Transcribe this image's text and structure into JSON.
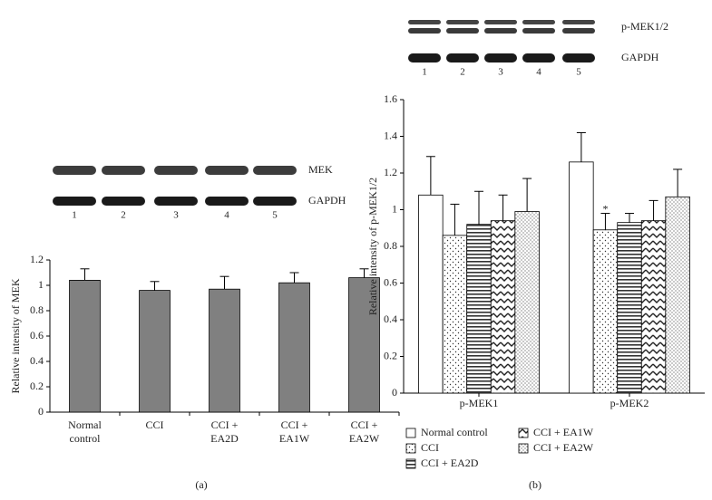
{
  "chart_data": [
    {
      "type": "bar",
      "panel_label": "(a)",
      "blot": {
        "rows": [
          "MEK",
          "GAPDH"
        ],
        "lanes": [
          "1",
          "2",
          "3",
          "4",
          "5"
        ]
      },
      "y_label": "Relative intensity of MEK",
      "categories": [
        "Normal control",
        "CCI",
        "CCI + EA2D",
        "CCI + EA1W",
        "CCI + EA2W"
      ],
      "values": [
        1.04,
        0.96,
        0.97,
        1.02,
        1.06
      ],
      "errors": [
        0.09,
        0.07,
        0.1,
        0.08,
        0.07
      ],
      "color": "#808080",
      "ylim": [
        0,
        1.2
      ],
      "yticks": [
        0,
        0.2,
        0.4,
        0.6,
        0.8,
        1,
        1.2
      ]
    },
    {
      "type": "grouped_bar",
      "panel_label": "(b)",
      "blot": {
        "rows": [
          "p-MEK1/2",
          "GAPDH"
        ],
        "lanes": [
          "1",
          "2",
          "3",
          "4",
          "5"
        ]
      },
      "y_label": "Relative intensity of p-MEK1/2",
      "categories": [
        "p-MEK1",
        "p-MEK2"
      ],
      "series": [
        {
          "name": "Normal control",
          "pattern": "none",
          "values": [
            1.08,
            1.26
          ],
          "errors": [
            0.21,
            0.16
          ]
        },
        {
          "name": "CCI",
          "pattern": "dots",
          "values": [
            0.86,
            0.89
          ],
          "errors": [
            0.17,
            0.09
          ]
        },
        {
          "name": "CCI + EA2D",
          "pattern": "hlines",
          "values": [
            0.92,
            0.93
          ],
          "errors": [
            0.18,
            0.05
          ]
        },
        {
          "name": "CCI + EA1W",
          "pattern": "zigzag",
          "values": [
            0.94,
            0.94
          ],
          "errors": [
            0.14,
            0.11
          ]
        },
        {
          "name": "CCI + EA2W",
          "pattern": "densedots",
          "values": [
            0.99,
            1.07
          ],
          "errors": [
            0.18,
            0.15
          ]
        }
      ],
      "annotations": [
        {
          "text": "*",
          "series": 1,
          "category": 1
        }
      ],
      "ylim": [
        0,
        1.6
      ],
      "yticks": [
        0,
        0.2,
        0.4,
        0.6,
        0.8,
        1,
        1.2,
        1.4,
        1.6
      ],
      "legend": "bottom"
    }
  ]
}
